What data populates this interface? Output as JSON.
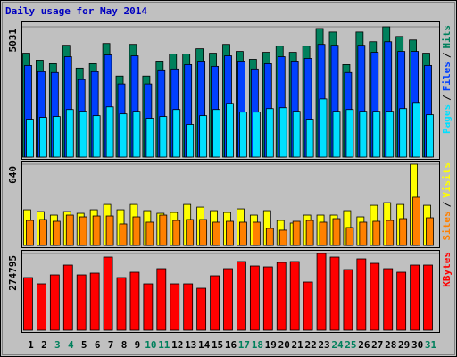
{
  "chart_data": [
    {
      "type": "bar",
      "title": "Daily usage for May 2014",
      "ylim": [
        0,
        5031
      ],
      "yticks": [
        5031
      ],
      "separator": "/",
      "series": [
        {
          "name": "Hits",
          "color": "#00805c",
          "values": [
            4012,
            3740,
            3604,
            4318,
            3434,
            3604,
            4386,
            3128,
            4352,
            3128,
            3706,
            3978,
            3978,
            4182,
            4012,
            4352,
            4080,
            3774,
            4046,
            4284,
            4046,
            4284,
            4964,
            4828,
            3570,
            4828,
            4454,
            5031,
            4658,
            4522,
            4012
          ]
        },
        {
          "name": "Files",
          "color": "#0040ff",
          "values": [
            3536,
            3298,
            3264,
            3876,
            2992,
            3298,
            3944,
            2822,
            3910,
            2822,
            3366,
            3400,
            3570,
            3706,
            3502,
            3910,
            3706,
            3400,
            3604,
            3876,
            3706,
            3808,
            4352,
            4318,
            3264,
            4318,
            4046,
            4454,
            4080,
            4080,
            3536
          ]
        },
        {
          "name": "Pages",
          "color": "#00e0ff",
          "values": [
            1462,
            1530,
            1564,
            1836,
            1768,
            1598,
            1938,
            1666,
            1768,
            1496,
            1564,
            1836,
            1258,
            1598,
            1836,
            2074,
            1734,
            1734,
            1870,
            1904,
            1768,
            1462,
            2244,
            1768,
            1836,
            1768,
            1768,
            1768,
            1870,
            2108,
            1632
          ]
        }
      ]
    },
    {
      "type": "bar",
      "ylim": [
        0,
        640
      ],
      "yticks": [
        640
      ],
      "separator": "/",
      "series": [
        {
          "name": "Visits",
          "color": "#ffff00",
          "values": [
            281,
            267,
            239,
            267,
            253,
            281,
            323,
            281,
            323,
            274,
            253,
            260,
            323,
            302,
            274,
            260,
            288,
            239,
            274,
            197,
            176,
            239,
            239,
            239,
            274,
            225,
            316,
            337,
            323,
            640,
            316
          ]
        },
        {
          "name": "Sites",
          "color": "#ff8000",
          "values": [
            197,
            204,
            190,
            239,
            225,
            232,
            232,
            169,
            225,
            183,
            239,
            197,
            204,
            204,
            183,
            190,
            183,
            183,
            134,
            120,
            190,
            197,
            183,
            211,
            141,
            183,
            190,
            197,
            211,
            380,
            218
          ]
        }
      ]
    },
    {
      "type": "bar",
      "ylim": [
        0,
        274795
      ],
      "yticks": [
        274795
      ],
      "categories": [
        "1",
        "2",
        "3",
        "4",
        "5",
        "6",
        "7",
        "8",
        "9",
        "10",
        "11",
        "12",
        "13",
        "14",
        "15",
        "16",
        "17",
        "18",
        "19",
        "20",
        "21",
        "22",
        "23",
        "24",
        "25",
        "26",
        "27",
        "28",
        "29",
        "30",
        "31"
      ],
      "label_colors": [
        "#000000",
        "#000000",
        "#00805c",
        "#00805c",
        "#000000",
        "#000000",
        "#000000",
        "#000000",
        "#000000",
        "#00805c",
        "#00805c",
        "#000000",
        "#000000",
        "#000000",
        "#000000",
        "#000000",
        "#00805c",
        "#00805c",
        "#000000",
        "#000000",
        "#000000",
        "#000000",
        "#000000",
        "#00805c",
        "#00805c",
        "#000000",
        "#000000",
        "#000000",
        "#000000",
        "#000000",
        "#00805c"
      ],
      "series": [
        {
          "name": "KBytes",
          "color": "#ff0000",
          "values": [
            188505,
            166140,
            198090,
            233235,
            198090,
            204480,
            261990,
            188505,
            207675,
            166140,
            220455,
            166140,
            166140,
            150165,
            194895,
            220455,
            246015,
            230040,
            226845,
            242820,
            246015,
            172530,
            274795,
            261990,
            217260,
            255600,
            239625,
            220455,
            207675,
            233235,
            233235
          ]
        }
      ]
    }
  ]
}
